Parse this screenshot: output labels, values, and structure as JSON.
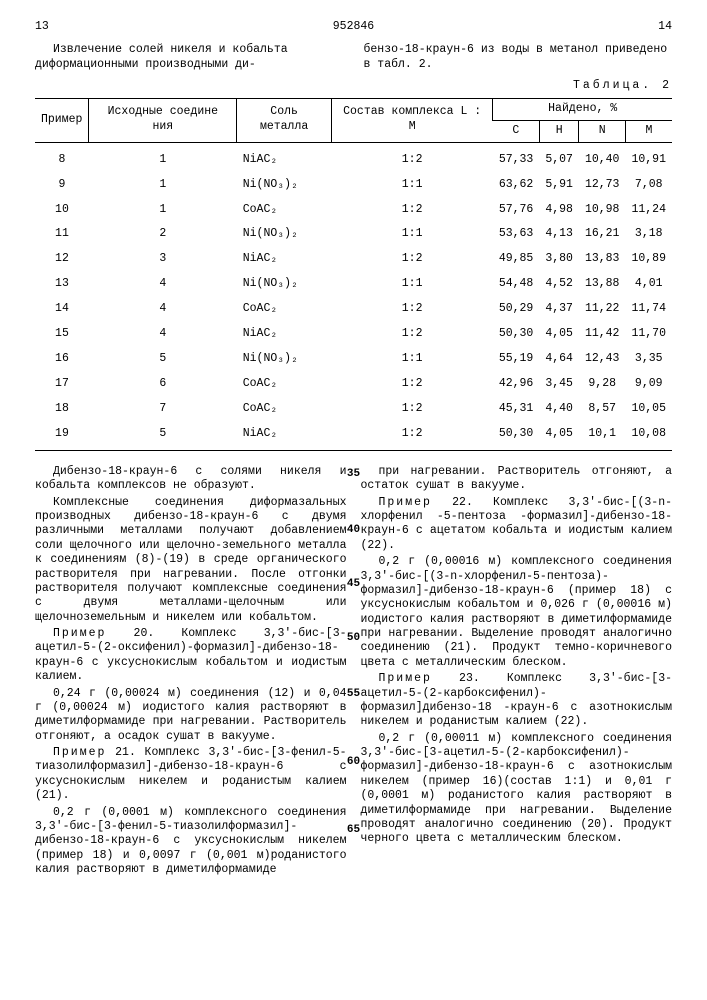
{
  "header": {
    "page_left": "13",
    "doc_num": "952846",
    "page_right": "14"
  },
  "intro": {
    "left": "Извлечение солей никеля и кобальта диформационными производными ди-",
    "right": "бензо-18-краун-6 из воды в метанол приведено в табл. 2."
  },
  "table_label": "Таблица. 2",
  "table": {
    "columns": {
      "col1": "Пример",
      "col2": "Исходные соедине ния",
      "col3": "Соль металла",
      "col4": "Состав комплекса L : M",
      "found_header": "Найдено, %",
      "c": "C",
      "h": "H",
      "n": "N",
      "m": "M"
    },
    "rows": [
      {
        "ex": "8",
        "src": "1",
        "salt": "NiAC₂",
        "ratio": "1:2",
        "c": "57,33",
        "h": "5,07",
        "n": "10,40",
        "m": "10,91"
      },
      {
        "ex": "9",
        "src": "1",
        "salt": "Ni(NO₃)₂",
        "ratio": "1:1",
        "c": "63,62",
        "h": "5,91",
        "n": "12,73",
        "m": "7,08"
      },
      {
        "ex": "10",
        "src": "1",
        "salt": "CoAC₂",
        "ratio": "1:2",
        "c": "57,76",
        "h": "4,98",
        "n": "10,98",
        "m": "11,24"
      },
      {
        "ex": "11",
        "src": "2",
        "salt": "Ni(NO₃)₂",
        "ratio": "1:1",
        "c": "53,63",
        "h": "4,13",
        "n": "16,21",
        "m": "3,18"
      },
      {
        "ex": "12",
        "src": "3",
        "salt": "NiAC₂",
        "ratio": "1:2",
        "c": "49,85",
        "h": "3,80",
        "n": "13,83",
        "m": "10,89"
      },
      {
        "ex": "13",
        "src": "4",
        "salt": "Ni(NO₃)₂",
        "ratio": "1:1",
        "c": "54,48",
        "h": "4,52",
        "n": "13,88",
        "m": "4,01"
      },
      {
        "ex": "14",
        "src": "4",
        "salt": "CoAC₂",
        "ratio": "1:2",
        "c": "50,29",
        "h": "4,37",
        "n": "11,22",
        "m": "11,74"
      },
      {
        "ex": "15",
        "src": "4",
        "salt": "NiAC₂",
        "ratio": "1:2",
        "c": "50,30",
        "h": "4,05",
        "n": "11,42",
        "m": "11,70"
      },
      {
        "ex": "16",
        "src": "5",
        "salt": "Ni(NO₃)₂",
        "ratio": "1:1",
        "c": "55,19",
        "h": "4,64",
        "n": "12,43",
        "m": "3,35"
      },
      {
        "ex": "17",
        "src": "6",
        "salt": "CoAC₂",
        "ratio": "1:2",
        "c": "42,96",
        "h": "3,45",
        "n": "9,28",
        "m": "9,09"
      },
      {
        "ex": "18",
        "src": "7",
        "salt": "CoAC₂",
        "ratio": "1:2",
        "c": "45,31",
        "h": "4,40",
        "n": "8,57",
        "m": "10,05"
      },
      {
        "ex": "19",
        "src": "5",
        "salt": "NiAC₂",
        "ratio": "1:2",
        "c": "50,30",
        "h": "4,05",
        "n": "10,1",
        "m": "10,08"
      }
    ]
  },
  "body": {
    "left": {
      "p1": "Дибензо-18-краун-6 с солями никеля и кобальта комплексов не образуют.",
      "p2": "Комплексные соединения диформазальных производных дибензо-18-краун-6 с двумя различными металлами получают добавлением соли щелочного или щелочно-земельного металла к соединениям (8)-(19) в среде органического растворителя при нагревании. После отгонки растворителя получают комплексные соединения с двумя металлами-щелочным или щелочноземельным и никелем или кобальтом.",
      "p3": "Пример 20. Комплекс 3,3'-бис-[3-ацетил-5-(2-оксифенил)-формазил]-дибензо-18-краун-6 с уксуснокислым кобальтом и иодистым калием.",
      "p4": "0,24 г (0,00024 м) соединения (12) и 0,04 г (0,00024 м) иодистого калия растворяют в диметилформамиде при нагревании. Растворитель отгоняют, а осадок сушат в вакууме.",
      "p5": "Пример 21. Комплекс 3,3'-бис-[3-фенил-5-тиазолилформазил]-дибензо-18-краун-6 с уксуснокислым никелем и роданистым калием (21).",
      "p6": "0,2 г (0,0001 м) комплексного соединения 3,3'-бис-[3-фенил-5-тиазолилформазил]-дибензо-18-краун-6 с уксуснокислым никелем (пример 18) и 0,0097 г (0,001 м)роданистого калия растворяют в диметилформамиде"
    },
    "right": {
      "p1": "при нагревании. Растворитель отгоняют, а остаток сушат в вакууме.",
      "p2": "Пример 22. Комплекс 3,3'-бис-[(3-n-хлорфенил -5-пентоза -формазил]-дибензо-18-краун-6 с ацетатом кобальта и иодистым калием (22).",
      "p3": "0,2 г (0,00016 м) комплексного соединения 3,3'-бис-[(3-n-хлорфенил-5-пентоза)-формазил]-дибензо-18-краун-6 (пример 18) с уксуснокислым кобальтом и 0,026 г (0,00016 м) иодистого калия растворяют в диметилформамиде при нагревании. Выделение проводят аналогично соединению (21). Продукт темно-коричневого цвета с металлическим блеском.",
      "p4": "Пример 23. Комплекс 3,3'-бис-[3-ацетил-5-(2-карбоксифенил)-формазил]дибензо-18 -краун-6 с азотнокислым никелем и роданистым калием (22).",
      "p5": "0,2 г (0,00011 м) комплексного соединения 3,3'-бис-[3-ацетил-5-(2-карбоксифенил)-формазил]-дибензо-18-краун-6 с азотнокислым никелем (пример 16)(состав 1:1) и 0,01 г (0,0001 м) роданистого калия растворяют в диметилформамиде при нагревании. Выделение проводят аналогично соединению (20). Продукт черного цвета с металлическим блеском."
    },
    "margin_markers": [
      "35",
      "40",
      "45",
      "50",
      "55",
      "60",
      "65"
    ]
  }
}
